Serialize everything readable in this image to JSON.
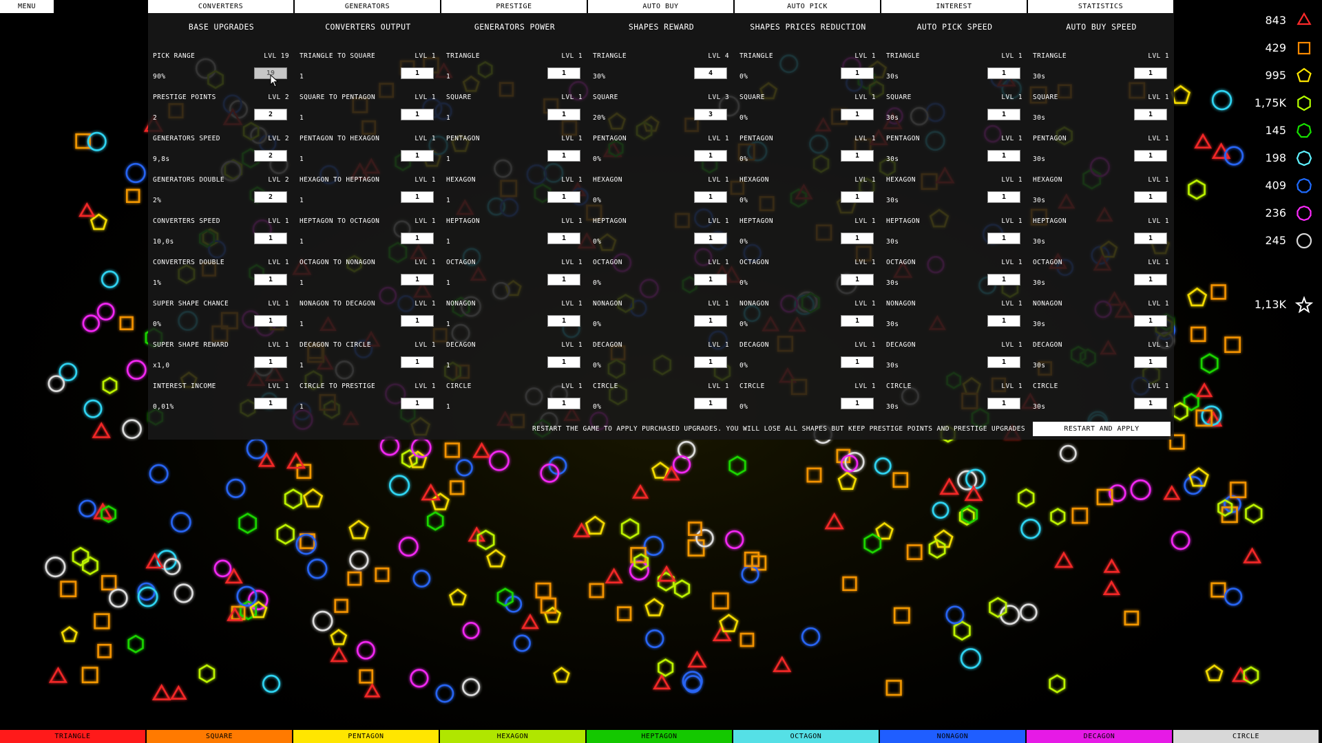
{
  "menu_label": "MENU",
  "tabs": [
    {
      "label": "CONVERTERS"
    },
    {
      "label": "GENERATORS"
    },
    {
      "label": "PRESTIGE"
    },
    {
      "label": "AUTO BUY"
    },
    {
      "label": "AUTO PICK"
    },
    {
      "label": "INTEREST"
    },
    {
      "label": "STATISTICS"
    }
  ],
  "columns": [
    {
      "title": "BASE UPGRADES",
      "rows": [
        {
          "name": "PICK RANGE",
          "level": "LVL 19",
          "value": "90%",
          "input": "19"
        },
        {
          "name": "PRESTIGE POINTS",
          "level": "LVL 2",
          "value": "2",
          "input": "2"
        },
        {
          "name": "GENERATORS SPEED",
          "level": "LVL 2",
          "value": "9,8s",
          "input": "2"
        },
        {
          "name": "GENERATORS DOUBLE",
          "level": "LVL 2",
          "value": "2%",
          "input": "2"
        },
        {
          "name": "CONVERTERS SPEED",
          "level": "LVL 1",
          "value": "10,0s",
          "input": "1"
        },
        {
          "name": "CONVERTERS DOUBLE",
          "level": "LVL 1",
          "value": "1%",
          "input": "1"
        },
        {
          "name": "SUPER SHAPE CHANCE",
          "level": "LVL 1",
          "value": "0%",
          "input": "1"
        },
        {
          "name": "SUPER SHAPE REWARD",
          "level": "LVL 1",
          "value": "x1,0",
          "input": "1"
        },
        {
          "name": "INTEREST INCOME",
          "level": "LVL 1",
          "value": "0,01%",
          "input": "1"
        }
      ]
    },
    {
      "title": "CONVERTERS OUTPUT",
      "rows": [
        {
          "name": "TRIANGLE TO SQUARE",
          "level": "LVL 1",
          "value": "1",
          "input": "1"
        },
        {
          "name": "SQUARE TO PENTAGON",
          "level": "LVL 1",
          "value": "1",
          "input": "1"
        },
        {
          "name": "PENTAGON TO HEXAGON",
          "level": "LVL 1",
          "value": "1",
          "input": "1"
        },
        {
          "name": "HEXAGON TO HEPTAGON",
          "level": "LVL 1",
          "value": "1",
          "input": "1"
        },
        {
          "name": "HEPTAGON TO OCTAGON",
          "level": "LVL 1",
          "value": "1",
          "input": "1"
        },
        {
          "name": "OCTAGON TO NONAGON",
          "level": "LVL 1",
          "value": "1",
          "input": "1"
        },
        {
          "name": "NONAGON TO DECAGON",
          "level": "LVL 1",
          "value": "1",
          "input": "1"
        },
        {
          "name": "DECAGON TO CIRCLE",
          "level": "LVL 1",
          "value": "1",
          "input": "1"
        },
        {
          "name": "CIRCLE TO PRESTIGE",
          "level": "LVL 1",
          "value": "1",
          "input": "1"
        }
      ]
    },
    {
      "title": "GENERATORS POWER",
      "rows": [
        {
          "name": "TRIANGLE",
          "level": "LVL 1",
          "value": "1",
          "input": "1"
        },
        {
          "name": "SQUARE",
          "level": "LVL 1",
          "value": "1",
          "input": "1"
        },
        {
          "name": "PENTAGON",
          "level": "LVL 1",
          "value": "1",
          "input": "1"
        },
        {
          "name": "HEXAGON",
          "level": "LVL 1",
          "value": "1",
          "input": "1"
        },
        {
          "name": "HEPTAGON",
          "level": "LVL 1",
          "value": "1",
          "input": "1"
        },
        {
          "name": "OCTAGON",
          "level": "LVL 1",
          "value": "1",
          "input": "1"
        },
        {
          "name": "NONAGON",
          "level": "LVL 1",
          "value": "1",
          "input": "1"
        },
        {
          "name": "DECAGON",
          "level": "LVL 1",
          "value": "1",
          "input": "1"
        },
        {
          "name": "CIRCLE",
          "level": "LVL 1",
          "value": "1",
          "input": "1"
        }
      ]
    },
    {
      "title": "SHAPES REWARD",
      "rows": [
        {
          "name": "TRIANGLE",
          "level": "LVL 4",
          "value": "30%",
          "input": "4"
        },
        {
          "name": "SQUARE",
          "level": "LVL 3",
          "value": "20%",
          "input": "3"
        },
        {
          "name": "PENTAGON",
          "level": "LVL 1",
          "value": "0%",
          "input": "1"
        },
        {
          "name": "HEXAGON",
          "level": "LVL 1",
          "value": "0%",
          "input": "1"
        },
        {
          "name": "HEPTAGON",
          "level": "LVL 1",
          "value": "0%",
          "input": "1"
        },
        {
          "name": "OCTAGON",
          "level": "LVL 1",
          "value": "0%",
          "input": "1"
        },
        {
          "name": "NONAGON",
          "level": "LVL 1",
          "value": "0%",
          "input": "1"
        },
        {
          "name": "DECAGON",
          "level": "LVL 1",
          "value": "0%",
          "input": "1"
        },
        {
          "name": "CIRCLE",
          "level": "LVL 1",
          "value": "0%",
          "input": "1"
        }
      ]
    },
    {
      "title": "SHAPES PRICES REDUCTION",
      "rows": [
        {
          "name": "TRIANGLE",
          "level": "LVL 1",
          "value": "0%",
          "input": "1"
        },
        {
          "name": "SQUARE",
          "level": "LVL 1",
          "value": "0%",
          "input": "1"
        },
        {
          "name": "PENTAGON",
          "level": "LVL 1",
          "value": "0%",
          "input": "1"
        },
        {
          "name": "HEXAGON",
          "level": "LVL 1",
          "value": "0%",
          "input": "1"
        },
        {
          "name": "HEPTAGON",
          "level": "LVL 1",
          "value": "0%",
          "input": "1"
        },
        {
          "name": "OCTAGON",
          "level": "LVL 1",
          "value": "0%",
          "input": "1"
        },
        {
          "name": "NONAGON",
          "level": "LVL 1",
          "value": "0%",
          "input": "1"
        },
        {
          "name": "DECAGON",
          "level": "LVL 1",
          "value": "0%",
          "input": "1"
        },
        {
          "name": "CIRCLE",
          "level": "LVL 1",
          "value": "0%",
          "input": "1"
        }
      ]
    },
    {
      "title": "AUTO PICK SPEED",
      "rows": [
        {
          "name": "TRIANGLE",
          "level": "LVL 1",
          "value": "30s",
          "input": "1"
        },
        {
          "name": "SQUARE",
          "level": "LVL 1",
          "value": "30s",
          "input": "1"
        },
        {
          "name": "PENTAGON",
          "level": "LVL 1",
          "value": "30s",
          "input": "1"
        },
        {
          "name": "HEXAGON",
          "level": "LVL 1",
          "value": "30s",
          "input": "1"
        },
        {
          "name": "HEPTAGON",
          "level": "LVL 1",
          "value": "30s",
          "input": "1"
        },
        {
          "name": "OCTAGON",
          "level": "LVL 1",
          "value": "30s",
          "input": "1"
        },
        {
          "name": "NONAGON",
          "level": "LVL 1",
          "value": "30s",
          "input": "1"
        },
        {
          "name": "DECAGON",
          "level": "LVL 1",
          "value": "30s",
          "input": "1"
        },
        {
          "name": "CIRCLE",
          "level": "LVL 1",
          "value": "30s",
          "input": "1"
        }
      ]
    },
    {
      "title": "AUTO BUY SPEED",
      "rows": [
        {
          "name": "TRIANGLE",
          "level": "LVL 1",
          "value": "30s",
          "input": "1"
        },
        {
          "name": "SQUARE",
          "level": "LVL 1",
          "value": "30s",
          "input": "1"
        },
        {
          "name": "PENTAGON",
          "level": "LVL 1",
          "value": "30s",
          "input": "1"
        },
        {
          "name": "HEXAGON",
          "level": "LVL 1",
          "value": "30s",
          "input": "1"
        },
        {
          "name": "HEPTAGON",
          "level": "LVL 1",
          "value": "30s",
          "input": "1"
        },
        {
          "name": "OCTAGON",
          "level": "LVL 1",
          "value": "30s",
          "input": "1"
        },
        {
          "name": "NONAGON",
          "level": "LVL 1",
          "value": "30s",
          "input": "1"
        },
        {
          "name": "DECAGON",
          "level": "LVL 1",
          "value": "30s",
          "input": "1"
        },
        {
          "name": "CIRCLE",
          "level": "LVL 1",
          "value": "30s",
          "input": "1"
        }
      ]
    }
  ],
  "restart_note": "RESTART THE GAME TO APPLY PURCHASED UPGRADES. YOU WILL LOSE ALL SHAPES BUT KEEP PRESTIGE POINTS AND PRESTIGE UPGRADES",
  "restart_button_label": "RESTART AND APPLY",
  "counters": [
    {
      "value": "843",
      "icon": "triangle-icon",
      "color": "#ff2a2a"
    },
    {
      "value": "429",
      "icon": "square-icon",
      "color": "#ff8a00"
    },
    {
      "value": "995",
      "icon": "pentagon-icon",
      "color": "#ffe600"
    },
    {
      "value": "1,75K",
      "icon": "hexagon-icon",
      "color": "#b5ff00"
    },
    {
      "value": "145",
      "icon": "heptagon-icon",
      "color": "#17e000"
    },
    {
      "value": "198",
      "icon": "octagon-icon",
      "color": "#5ff2ff"
    },
    {
      "value": "409",
      "icon": "nonagon-icon",
      "color": "#1f6bff"
    },
    {
      "value": "236",
      "icon": "decagon-icon",
      "color": "#ff2aff"
    },
    {
      "value": "245",
      "icon": "circle-icon",
      "color": "#d8d8d8"
    },
    {
      "value": "1,13K",
      "icon": "star-icon",
      "color": "#ffffff"
    }
  ],
  "bottom_buttons": [
    {
      "label": "TRIANGLE",
      "color": "#ff1a1a"
    },
    {
      "label": "SQUARE",
      "color": "#ff7a00"
    },
    {
      "label": "PENTAGON",
      "color": "#ffe600"
    },
    {
      "label": "HEXAGON",
      "color": "#b0e600"
    },
    {
      "label": "HEPTAGON",
      "color": "#14c800"
    },
    {
      "label": "OCTAGON",
      "color": "#55e0e6"
    },
    {
      "label": "NONAGON",
      "color": "#1f5eff"
    },
    {
      "label": "DECAGON",
      "color": "#e61ae6"
    },
    {
      "label": "CIRCLE",
      "color": "#d8d8d8"
    }
  ]
}
